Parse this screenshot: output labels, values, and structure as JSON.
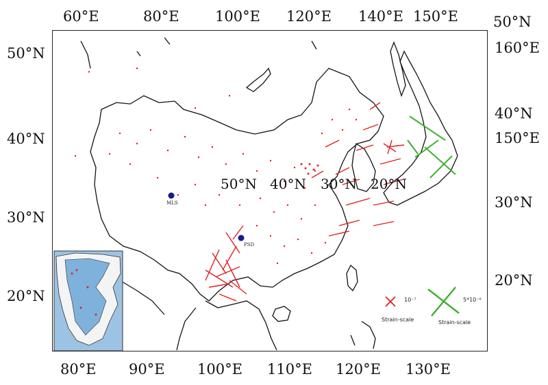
{
  "top_longitude_labels": [
    "60°E",
    "80°E",
    "100°E",
    "120°E",
    "140°E",
    "150°E"
  ],
  "top_right_label": "50°N",
  "left_latitude_labels": [
    "50°N",
    "40°N",
    "30°N",
    "20°N"
  ],
  "bottom_longitude_labels": [
    "80°E",
    "90°E",
    "100°E",
    "110°E",
    "120°E",
    "130°E"
  ],
  "right_labels": [
    "160°E",
    "40°N",
    "150°E",
    "30°N",
    "20°N"
  ],
  "inner_latitude_labels": [
    "50°N",
    "40°N",
    "30°N",
    "20°N"
  ],
  "stations": [
    {
      "name": "MLS",
      "color": "#1a1a8c"
    },
    {
      "name": "PSD",
      "color": "#1a1a8c"
    }
  ],
  "legend": {
    "red_scale": "10⁻⁷",
    "red_caption": "Strain-scale",
    "green_scale": "5*10⁻⁶",
    "green_caption": "Strain-scale"
  },
  "colors": {
    "strain_red": "#e02020",
    "strain_green": "#3cb02c",
    "coast": "#111111",
    "inset_sea": "#9cc3e4"
  }
}
